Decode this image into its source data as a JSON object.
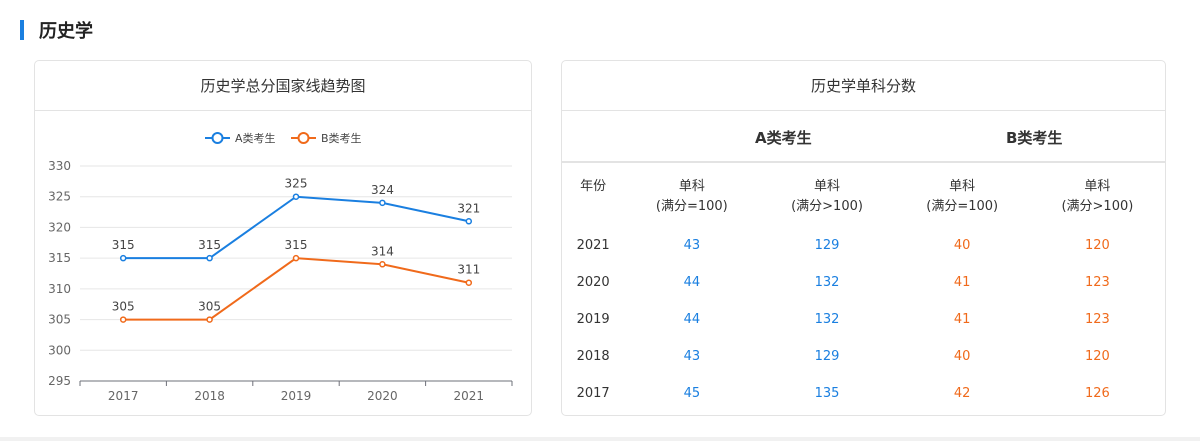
{
  "section_title": "历史学",
  "colors": {
    "a": "#1a7fe0",
    "b": "#f06a1b",
    "accent": "#1a7fe0"
  },
  "chart_card": {
    "title": "历史学总分国家线趋势图"
  },
  "chart_data": {
    "type": "line",
    "title": "历史学总分国家线趋势图",
    "categories": [
      "2017",
      "2018",
      "2019",
      "2020",
      "2021"
    ],
    "series": [
      {
        "name": "A类考生",
        "values": [
          315,
          315,
          325,
          324,
          321
        ]
      },
      {
        "name": "B类考生",
        "values": [
          305,
          305,
          315,
          314,
          311
        ]
      }
    ],
    "ylim": [
      295,
      330
    ],
    "yticks": [
      "295",
      "300",
      "305",
      "310",
      "315",
      "320",
      "325",
      "330"
    ],
    "grid": true,
    "legend": "top-center",
    "data_labels": true
  },
  "table_card": {
    "title": "历史学单科分数",
    "group_a": "A类考生",
    "group_b": "B类考生",
    "headers": [
      "年份",
      "单科\n(满分=100)",
      "单科\n(满分>100)",
      "单科\n(满分=100)",
      "单科\n(满分>100)"
    ],
    "rows": [
      [
        "2021",
        "43",
        "129",
        "40",
        "120"
      ],
      [
        "2020",
        "44",
        "132",
        "41",
        "123"
      ],
      [
        "2019",
        "44",
        "132",
        "41",
        "123"
      ],
      [
        "2018",
        "43",
        "129",
        "40",
        "120"
      ],
      [
        "2017",
        "45",
        "135",
        "42",
        "126"
      ]
    ]
  }
}
